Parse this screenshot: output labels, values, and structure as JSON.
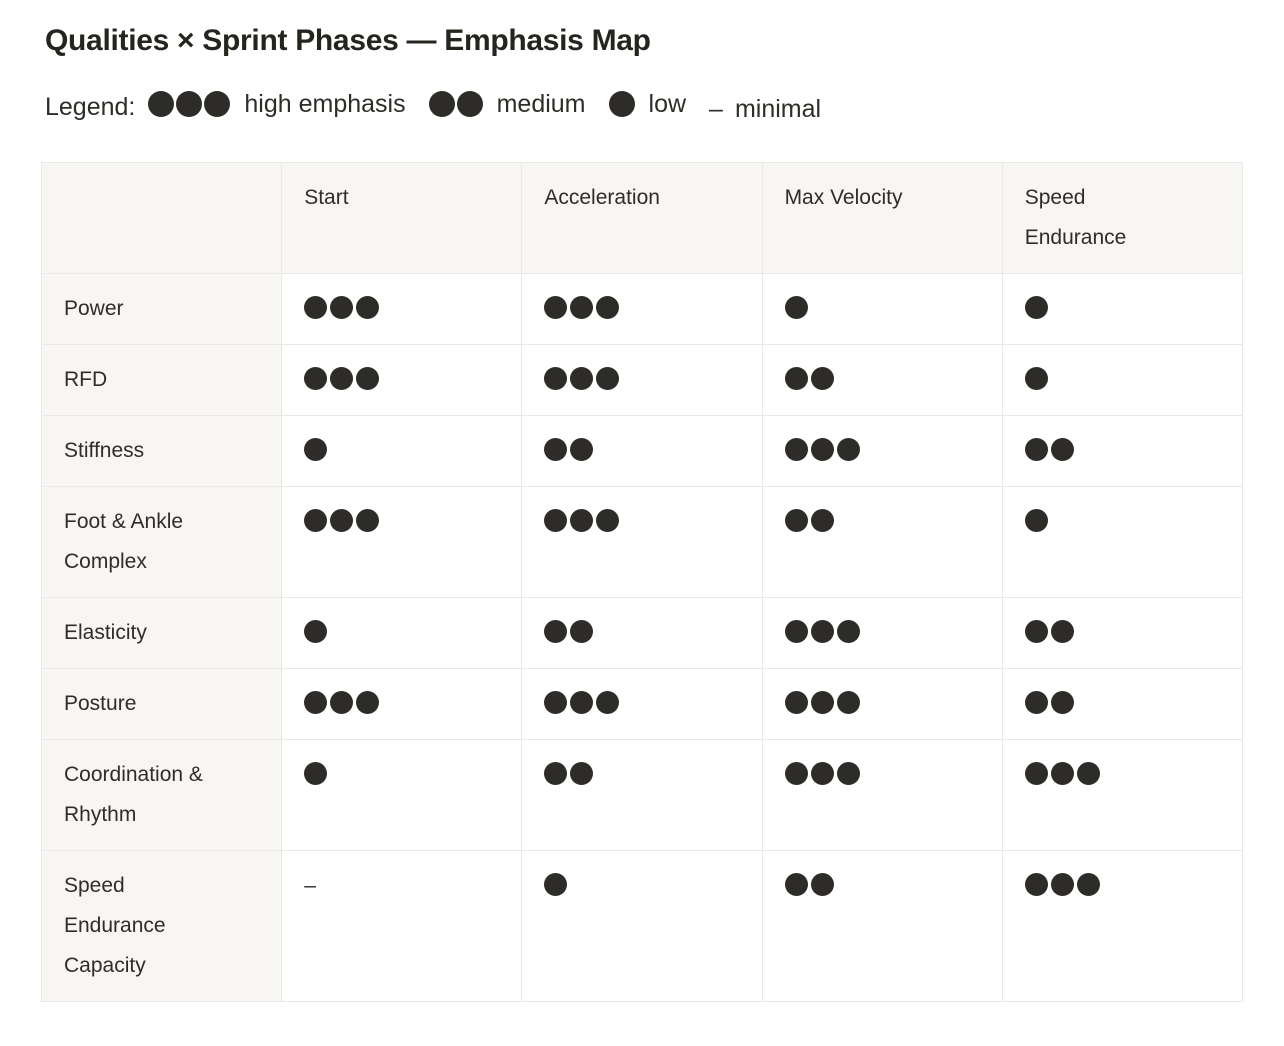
{
  "page": {
    "title": "Qualities × Sprint Phases — Emphasis Map"
  },
  "legend": {
    "prefix": "Legend:",
    "minimal_marker": "–",
    "items": [
      {
        "dots": 3,
        "label": "high emphasis"
      },
      {
        "dots": 2,
        "label": "medium"
      },
      {
        "dots": 1,
        "label": "low"
      },
      {
        "dots": 0,
        "label": "minimal"
      }
    ]
  },
  "table": {
    "minimal_marker": "–",
    "columns": [
      "",
      "Start",
      "Acceleration",
      "Max Velocity",
      "Speed Endurance"
    ],
    "rows": [
      {
        "label": "Power",
        "cells": [
          3,
          3,
          1,
          1
        ]
      },
      {
        "label": "RFD",
        "cells": [
          3,
          3,
          2,
          1
        ]
      },
      {
        "label": "Stiffness",
        "cells": [
          1,
          2,
          3,
          2
        ]
      },
      {
        "label": "Foot & Ankle Complex",
        "cells": [
          3,
          3,
          2,
          1
        ]
      },
      {
        "label": "Elasticity",
        "cells": [
          1,
          2,
          3,
          2
        ]
      },
      {
        "label": "Posture",
        "cells": [
          3,
          3,
          3,
          2
        ]
      },
      {
        "label": "Coordination & Rhythm",
        "cells": [
          1,
          2,
          3,
          3
        ]
      },
      {
        "label": "Speed Endurance Capacity",
        "cells": [
          0,
          1,
          2,
          3
        ]
      }
    ]
  },
  "colors": {
    "text": "#37352f",
    "title": "#26241f",
    "dot": "#2e2c29",
    "header_bg": "#f7f6f3",
    "border": "#e9e9e7",
    "page_bg": "#ffffff"
  },
  "chart_data": {
    "type": "table",
    "title": "Qualities × Sprint Phases — Emphasis Map",
    "value_scale": {
      "3": "high emphasis",
      "2": "medium",
      "1": "low",
      "0": "minimal"
    },
    "categories": [
      "Start",
      "Acceleration",
      "Max Velocity",
      "Speed Endurance"
    ],
    "series": [
      {
        "name": "Power",
        "values": [
          3,
          3,
          1,
          1
        ]
      },
      {
        "name": "RFD",
        "values": [
          3,
          3,
          2,
          1
        ]
      },
      {
        "name": "Stiffness",
        "values": [
          1,
          2,
          3,
          2
        ]
      },
      {
        "name": "Foot & Ankle Complex",
        "values": [
          3,
          3,
          2,
          1
        ]
      },
      {
        "name": "Elasticity",
        "values": [
          1,
          2,
          3,
          2
        ]
      },
      {
        "name": "Posture",
        "values": [
          3,
          3,
          3,
          2
        ]
      },
      {
        "name": "Coordination & Rhythm",
        "values": [
          1,
          2,
          3,
          3
        ]
      },
      {
        "name": "Speed Endurance Capacity",
        "values": [
          0,
          1,
          2,
          3
        ]
      }
    ]
  }
}
